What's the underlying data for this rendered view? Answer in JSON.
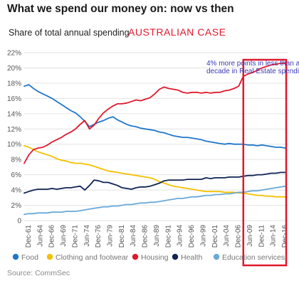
{
  "header": {
    "title": "What we spend our money on: now vs then",
    "subtitle": "Share of total annual spending",
    "case_label": "AUSTRALIAN CASE"
  },
  "source": "Source: CommSec",
  "annotation": {
    "lines": [
      "4% more points  in less than a",
      "decade in Real Estate spending"
    ],
    "box_start_year": 2008,
    "box_color": "#e0182c"
  },
  "chart_data": {
    "type": "line",
    "title": "What we spend our money on: now vs then",
    "subtitle": "Share of total annual spending",
    "xlabel": "",
    "ylabel": "",
    "xlim": [
      1961,
      2017.5
    ],
    "ylim": [
      0,
      22
    ],
    "grid": true,
    "legend_position": "bottom",
    "y_ticks": [
      "0",
      "2%",
      "4%",
      "6%",
      "8%",
      "10%",
      "12%",
      "14%",
      "16%",
      "18%",
      "20%",
      "22%"
    ],
    "y_tick_values": [
      0,
      2,
      4,
      6,
      8,
      10,
      12,
      14,
      16,
      18,
      20,
      22
    ],
    "x_ticks": [
      "Dec-61",
      "Jun-64",
      "Dec-66",
      "Jun-69",
      "Dec-71",
      "Jun-74",
      "Dec-76",
      "Jun-79",
      "Dec-81",
      "Jun-84",
      "Dec-86",
      "Jun-89",
      "Dec-91",
      "Jun-94",
      "Dec-96",
      "Jun-99",
      "Dec-01",
      "Jun-04",
      "Dec-06",
      "Jun-09",
      "Dec-11",
      "Jun-14",
      "Dec-16"
    ],
    "x_tick_values": [
      1961.9,
      1964.4,
      1966.9,
      1969.4,
      1971.9,
      1974.4,
      1976.9,
      1979.4,
      1981.9,
      1984.4,
      1986.9,
      1989.4,
      1991.9,
      1994.4,
      1996.9,
      1999.4,
      2001.9,
      2004.4,
      2006.9,
      2009.4,
      2011.9,
      2014.4,
      2016.9
    ],
    "series": [
      {
        "name": "Food",
        "color": "#1f77c9",
        "x": [
          1961,
          1962,
          1963,
          1964,
          1965,
          1966,
          1967,
          1968,
          1969,
          1970,
          1971,
          1972,
          1973,
          1974,
          1975,
          1976,
          1977,
          1978,
          1979,
          1980,
          1981,
          1982,
          1983,
          1984,
          1985,
          1986,
          1987,
          1988,
          1989,
          1990,
          1991,
          1992,
          1993,
          1994,
          1995,
          1996,
          1997,
          1998,
          1999,
          2000,
          2001,
          2002,
          2003,
          2004,
          2005,
          2006,
          2007,
          2008,
          2009,
          2010,
          2011,
          2012,
          2013,
          2014,
          2015,
          2016,
          2017
        ],
        "values": [
          17.6,
          17.8,
          17.3,
          16.9,
          16.6,
          16.3,
          16.0,
          15.6,
          15.2,
          14.8,
          14.4,
          14.1,
          13.6,
          13.0,
          12.3,
          12.6,
          12.9,
          13.1,
          13.4,
          13.6,
          13.2,
          12.9,
          12.6,
          12.4,
          12.3,
          12.1,
          12.0,
          11.9,
          11.8,
          11.6,
          11.5,
          11.3,
          11.1,
          11.0,
          10.9,
          10.9,
          10.8,
          10.7,
          10.6,
          10.4,
          10.3,
          10.2,
          10.1,
          10.0,
          10.1,
          10.0,
          10.0,
          10.0,
          9.9,
          9.9,
          9.8,
          9.9,
          9.8,
          9.7,
          9.6,
          9.6,
          9.5
        ]
      },
      {
        "name": "Clothing and footwear",
        "color": "#f5c000",
        "x": [
          1961,
          1962,
          1963,
          1964,
          1965,
          1966,
          1967,
          1968,
          1969,
          1970,
          1971,
          1972,
          1973,
          1974,
          1975,
          1976,
          1977,
          1978,
          1979,
          1980,
          1981,
          1982,
          1983,
          1984,
          1985,
          1986,
          1987,
          1988,
          1989,
          1990,
          1991,
          1992,
          1993,
          1994,
          1995,
          1996,
          1997,
          1998,
          1999,
          2000,
          2001,
          2002,
          2003,
          2004,
          2005,
          2006,
          2007,
          2008,
          2009,
          2010,
          2011,
          2012,
          2013,
          2014,
          2015,
          2016,
          2017
        ],
        "values": [
          9.8,
          9.6,
          9.3,
          9.0,
          8.8,
          8.6,
          8.4,
          8.1,
          7.9,
          7.8,
          7.6,
          7.5,
          7.5,
          7.4,
          7.3,
          7.1,
          6.9,
          6.7,
          6.5,
          6.4,
          6.3,
          6.2,
          6.1,
          6.0,
          5.9,
          5.8,
          5.7,
          5.6,
          5.4,
          5.1,
          4.9,
          4.7,
          4.5,
          4.4,
          4.3,
          4.2,
          4.1,
          4.0,
          3.9,
          3.8,
          3.8,
          3.8,
          3.8,
          3.7,
          3.7,
          3.7,
          3.6,
          3.6,
          3.5,
          3.4,
          3.3,
          3.3,
          3.2,
          3.2,
          3.1,
          3.1,
          3.1
        ]
      },
      {
        "name": "Housing",
        "color": "#e0182c",
        "x": [
          1961,
          1962,
          1963,
          1964,
          1965,
          1966,
          1967,
          1968,
          1969,
          1970,
          1971,
          1972,
          1973,
          1974,
          1975,
          1976,
          1977,
          1978,
          1979,
          1980,
          1981,
          1982,
          1983,
          1984,
          1985,
          1986,
          1987,
          1988,
          1989,
          1990,
          1991,
          1992,
          1993,
          1994,
          1995,
          1996,
          1997,
          1998,
          1999,
          2000,
          2001,
          2002,
          2003,
          2004,
          2005,
          2006,
          2007,
          2008,
          2009,
          2010,
          2011,
          2012,
          2013,
          2014,
          2015,
          2016,
          2017
        ],
        "values": [
          7.5,
          8.6,
          9.3,
          9.5,
          9.6,
          9.9,
          10.3,
          10.6,
          10.9,
          11.3,
          11.6,
          12.0,
          12.6,
          13.1,
          12.0,
          12.5,
          13.4,
          14.1,
          14.6,
          15.0,
          15.3,
          15.3,
          15.4,
          15.6,
          15.8,
          15.7,
          15.9,
          16.1,
          16.6,
          17.2,
          17.5,
          17.3,
          17.2,
          17.1,
          16.8,
          16.7,
          16.8,
          16.8,
          16.7,
          16.8,
          16.7,
          16.8,
          16.8,
          17.0,
          17.1,
          17.3,
          17.6,
          18.9,
          19.2,
          19.4,
          19.7,
          20.0,
          20.2,
          20.4,
          20.5,
          20.6,
          20.6
        ]
      },
      {
        "name": "Health",
        "color": "#0f2354",
        "x": [
          1961,
          1962,
          1963,
          1964,
          1965,
          1966,
          1967,
          1968,
          1969,
          1970,
          1971,
          1972,
          1973,
          1974,
          1975,
          1976,
          1977,
          1978,
          1979,
          1980,
          1981,
          1982,
          1983,
          1984,
          1985,
          1986,
          1987,
          1988,
          1989,
          1990,
          1991,
          1992,
          1993,
          1994,
          1995,
          1996,
          1997,
          1998,
          1999,
          2000,
          2001,
          2002,
          2003,
          2004,
          2005,
          2006,
          2007,
          2008,
          2009,
          2010,
          2011,
          2012,
          2013,
          2014,
          2015,
          2016,
          2017
        ],
        "values": [
          3.6,
          3.8,
          4.0,
          4.1,
          4.1,
          4.1,
          4.2,
          4.1,
          4.2,
          4.3,
          4.3,
          4.4,
          4.5,
          4.0,
          4.6,
          5.3,
          5.2,
          5.0,
          5.0,
          4.8,
          4.6,
          4.3,
          4.2,
          4.1,
          4.3,
          4.4,
          4.4,
          4.5,
          4.7,
          4.9,
          5.2,
          5.3,
          5.3,
          5.3,
          5.3,
          5.4,
          5.4,
          5.4,
          5.4,
          5.6,
          5.5,
          5.6,
          5.6,
          5.6,
          5.7,
          5.7,
          5.7,
          5.8,
          5.9,
          5.9,
          6.0,
          6.0,
          6.1,
          6.2,
          6.2,
          6.3,
          6.3
        ]
      },
      {
        "name": "Education services",
        "color": "#6aa9d8",
        "x": [
          1961,
          1962,
          1963,
          1964,
          1965,
          1966,
          1967,
          1968,
          1969,
          1970,
          1971,
          1972,
          1973,
          1974,
          1975,
          1976,
          1977,
          1978,
          1979,
          1980,
          1981,
          1982,
          1983,
          1984,
          1985,
          1986,
          1987,
          1988,
          1989,
          1990,
          1991,
          1992,
          1993,
          1994,
          1995,
          1996,
          1997,
          1998,
          1999,
          2000,
          2001,
          2002,
          2003,
          2004,
          2005,
          2006,
          2007,
          2008,
          2009,
          2010,
          2011,
          2012,
          2013,
          2014,
          2015,
          2016,
          2017
        ],
        "values": [
          0.8,
          0.9,
          0.9,
          1.0,
          1.0,
          1.0,
          1.1,
          1.1,
          1.1,
          1.2,
          1.2,
          1.2,
          1.3,
          1.4,
          1.5,
          1.6,
          1.7,
          1.8,
          1.8,
          1.9,
          1.9,
          2.0,
          2.1,
          2.1,
          2.2,
          2.3,
          2.3,
          2.4,
          2.4,
          2.5,
          2.6,
          2.7,
          2.8,
          2.9,
          2.9,
          3.0,
          3.1,
          3.1,
          3.2,
          3.3,
          3.3,
          3.4,
          3.4,
          3.5,
          3.5,
          3.6,
          3.7,
          3.7,
          3.8,
          3.9,
          3.9,
          4.0,
          4.1,
          4.2,
          4.3,
          4.4,
          4.5
        ]
      }
    ]
  }
}
